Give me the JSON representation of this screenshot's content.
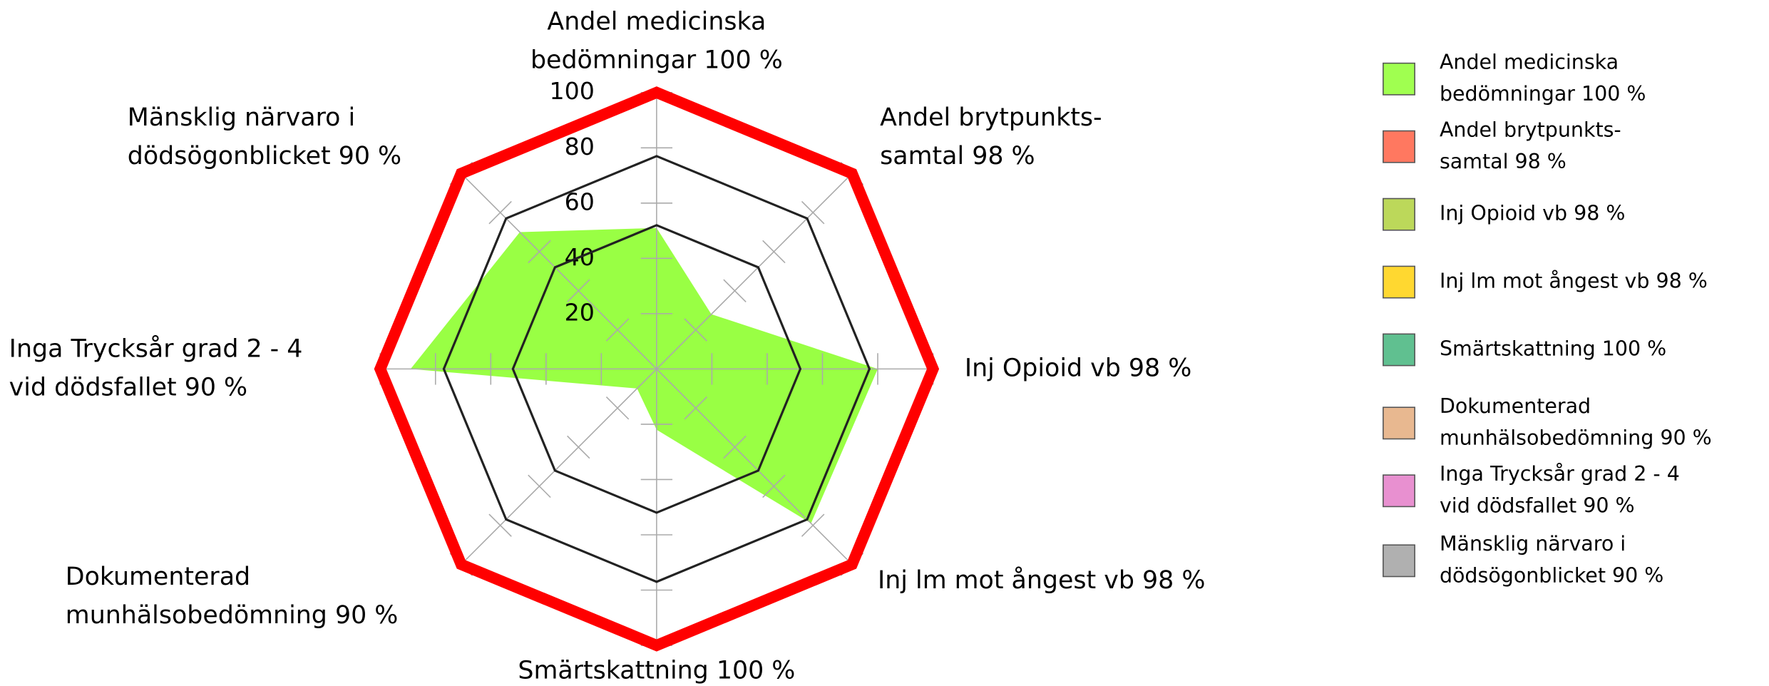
{
  "chart_data": {
    "type": "radar",
    "categories": [
      [
        "Andel medicinska",
        "bedömningar 100 %"
      ],
      [
        "Andel brytpunkts-",
        "samtal 98 %"
      ],
      [
        "Inj Opioid vb 98 %"
      ],
      [
        "Inj lm mot ångest vb 98 %"
      ],
      [
        "Smärtskattning 100 %"
      ],
      [
        "Dokumenterad",
        "munhälsobedömning 90 %"
      ],
      [
        "Inga Trycksår grad 2 - 4",
        "vid dödsfallet 90 %"
      ],
      [
        "Mänsklig närvaro i",
        "dödsögonblicket 90 %"
      ]
    ],
    "series": [
      {
        "color": "#99ff44",
        "fill": true,
        "values": [
          51,
          28,
          80,
          79,
          22,
          10,
          89,
          70
        ]
      },
      {
        "color": "#ff0000",
        "fill": false,
        "width": 10,
        "values": [
          100,
          100,
          100,
          100,
          100,
          100,
          100,
          100
        ]
      },
      {
        "color": "#222222",
        "fill": false,
        "width": 2,
        "values": [
          77,
          77,
          77,
          77,
          77,
          77,
          77,
          77
        ]
      },
      {
        "color": "#222222",
        "fill": false,
        "width": 2,
        "values": [
          52,
          52,
          52,
          52,
          52,
          52,
          52,
          52
        ]
      }
    ],
    "ylim": [
      0,
      100
    ],
    "yticks": [
      20,
      40,
      60,
      80,
      100
    ],
    "legend_colors": [
      "#a0ff50",
      "#ff7860",
      "#bcd85a",
      "#ffd830",
      "#60c090",
      "#e8b890",
      "#e890d0",
      "#b0b0b0"
    ]
  }
}
